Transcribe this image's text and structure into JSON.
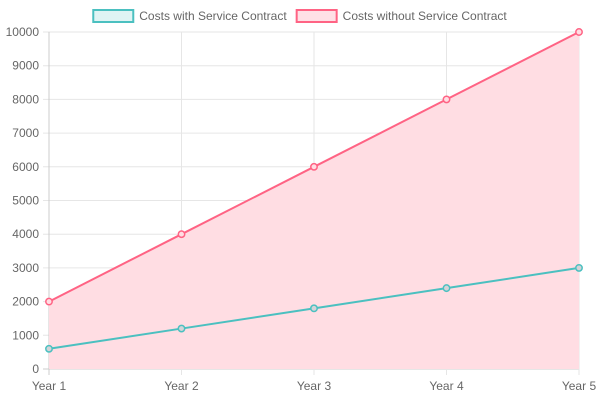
{
  "chart_data": {
    "type": "area",
    "categories": [
      "Year 1",
      "Year 2",
      "Year 3",
      "Year 4",
      "Year 5"
    ],
    "series": [
      {
        "name": "Costs with Service Contract",
        "values": [
          600,
          1200,
          1800,
          2400,
          3000
        ],
        "border_color": "#4bc0c0",
        "fill_color": "#d4d4d8"
      },
      {
        "name": "Costs without Service Contract",
        "values": [
          2000,
          4000,
          6000,
          8000,
          10000
        ],
        "border_color": "#ff6384",
        "fill_color": "#ffdde3"
      }
    ],
    "ylim": [
      0,
      10000
    ],
    "yticks": [
      0,
      1000,
      2000,
      3000,
      4000,
      5000,
      6000,
      7000,
      8000,
      9000,
      10000
    ],
    "grid": true,
    "legend": "top-center",
    "legend_swatch_colors": [
      "#e0f4f4",
      "#ffe0e6"
    ]
  }
}
